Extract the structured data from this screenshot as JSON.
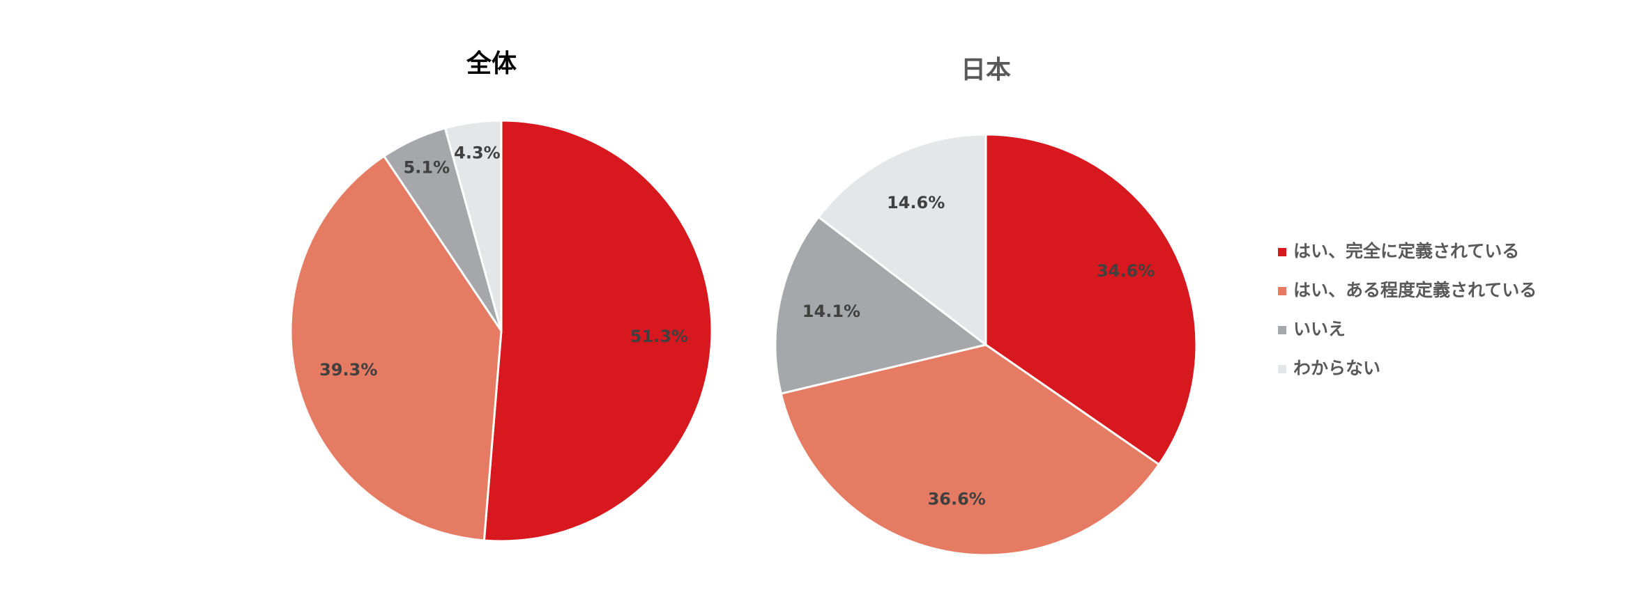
{
  "chart_data": [
    {
      "type": "pie",
      "title": "全体",
      "values": [
        51.3,
        39.3,
        5.1,
        4.3
      ],
      "value_labels": [
        "51.3%",
        "39.3%",
        "5.1%",
        "4.3%"
      ],
      "colors": [
        "#d7191f",
        "#e57b62",
        "#a6a7aa",
        "#e5e6e8"
      ]
    },
    {
      "type": "pie",
      "title": "日本",
      "categories": [
        "はい、完全に定義されている",
        "はい、ある程度定義されている",
        "いいえ",
        "わからない"
      ],
      "values": [
        34.6,
        36.6,
        14.1,
        14.6
      ],
      "value_labels": [
        "34.6%",
        "36.6%",
        "14.1%",
        "14.6%"
      ],
      "colors": [
        "#d7191f",
        "#e57b62",
        "#a6a7aa",
        "#e5e6e8"
      ],
      "legend": "right"
    }
  ]
}
